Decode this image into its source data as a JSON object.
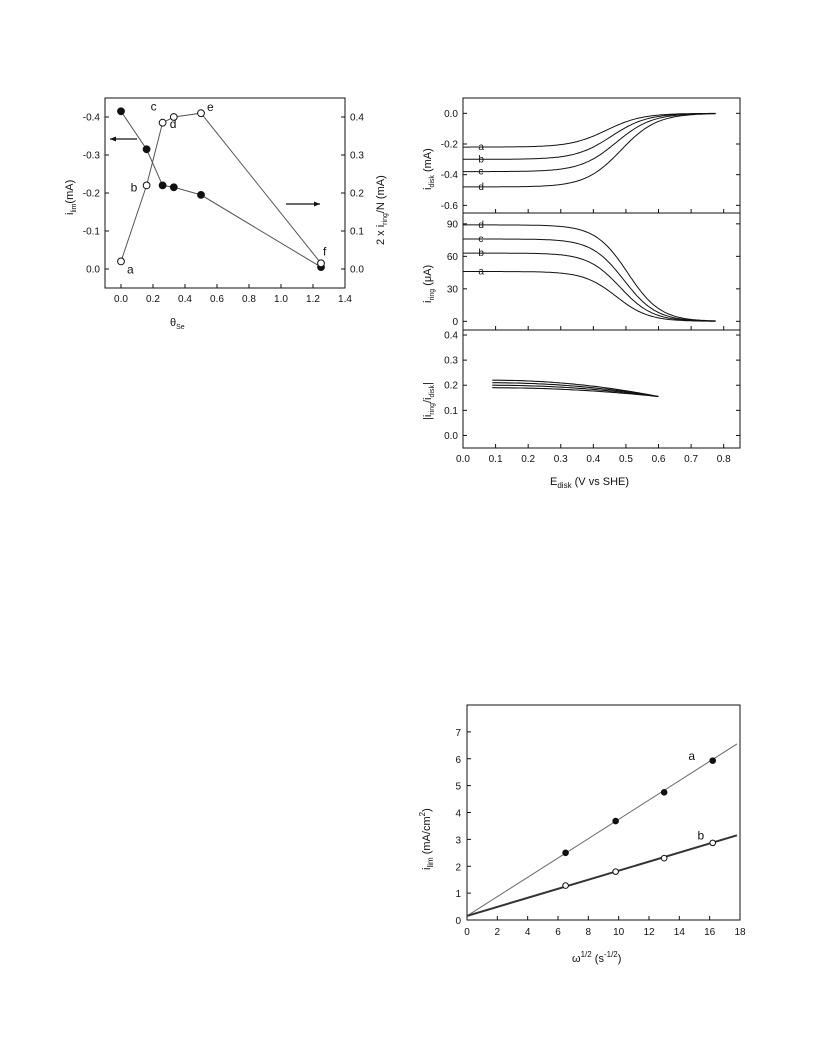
{
  "chart_data": [
    {
      "type": "line",
      "xlabel": "θ",
      "xlabel_sub": "Se",
      "ylabel_left": "i",
      "ylabel_left_sub": "lim",
      "ylabel_left_post": "(mA)",
      "ylabel_right_pre": "2 x i",
      "ylabel_right_sub": "ring",
      "ylabel_right_post": "/N (mA)",
      "xlim": [
        -0.1,
        1.4
      ],
      "xticks": [
        "0.0",
        "0.2",
        "0.4",
        "0.6",
        "0.8",
        "1.0",
        "1.2",
        "1.4"
      ],
      "ylim_left": [
        0.05,
        -0.45
      ],
      "yticks_left": [
        "-0.4",
        "-0.3",
        "-0.2",
        "-0.1",
        "0.0"
      ],
      "ylim_right": [
        -0.05,
        0.45
      ],
      "yticks_right": [
        "0.4",
        "0.3",
        "0.2",
        "0.1",
        "0.0"
      ],
      "series": [
        {
          "marker": "filled",
          "axis": "left",
          "x": [
            0.0,
            0.16,
            0.26,
            0.33,
            0.5,
            1.25
          ],
          "y": [
            -0.415,
            -0.315,
            -0.22,
            -0.215,
            -0.195,
            -0.005
          ]
        },
        {
          "marker": "open",
          "axis": "right",
          "x": [
            0.0,
            0.16,
            0.26,
            0.33,
            0.5,
            1.25
          ],
          "y": [
            0.02,
            0.22,
            0.385,
            0.4,
            0.41,
            0.015
          ],
          "labels": [
            "a",
            "b",
            "c",
            "d",
            "e",
            "f"
          ]
        }
      ]
    },
    {
      "type": "line",
      "xlabel": "E",
      "xlabel_sub": "disk",
      "xlabel_post": " (V vs SHE)",
      "xlim": [
        0.0,
        0.85
      ],
      "xticks": [
        "0.0",
        "0.1",
        "0.2",
        "0.3",
        "0.4",
        "0.5",
        "0.6",
        "0.7",
        "0.8"
      ],
      "panels": [
        {
          "ylabel": "i",
          "ylabel_sub": "disk",
          "ylabel_post": " (mA)",
          "ylim": [
            -0.65,
            0.1
          ],
          "yticks": [
            "0.0",
            "-0.2",
            "-0.4",
            "-0.6"
          ],
          "series": [
            {
              "name": "a",
              "plateau": -0.22
            },
            {
              "name": "b",
              "plateau": -0.3
            },
            {
              "name": "c",
              "plateau": -0.38
            },
            {
              "name": "d",
              "plateau": -0.48
            }
          ]
        },
        {
          "ylabel": "i",
          "ylabel_sub": "ring",
          "ylabel_post": " (μA)",
          "ylim": [
            -8,
            100
          ],
          "yticks": [
            "90",
            "60",
            "30",
            "0"
          ],
          "series": [
            {
              "name": "a",
              "plateau": 46
            },
            {
              "name": "b",
              "plateau": 63
            },
            {
              "name": "c",
              "plateau": 76
            },
            {
              "name": "d",
              "plateau": 89
            }
          ]
        },
        {
          "ylabel": "|i",
          "ylabel_sub": "ring",
          "ylabel_mid": "/i",
          "ylabel_sub2": "disk",
          "ylabel_post": "|",
          "ylim": [
            -0.05,
            0.42
          ],
          "yticks": [
            "0.4",
            "0.3",
            "0.2",
            "0.1",
            "0.0"
          ],
          "series": [
            {
              "name": "a",
              "start": 0.22
            },
            {
              "name": "b",
              "start": 0.21
            },
            {
              "name": "c",
              "start": 0.2
            },
            {
              "name": "d",
              "start": 0.19
            }
          ],
          "x_range": [
            0.09,
            0.6
          ],
          "end_value": 0.155
        }
      ]
    },
    {
      "type": "scatter",
      "xlabel": "ω",
      "xlabel_sup": "1/2",
      "xlabel_post": " (s",
      "xlabel_sup2": "-1/2",
      "xlabel_end": ")",
      "ylabel": "i",
      "ylabel_sub": "lim",
      "ylabel_post": " (mA/cm",
      "ylabel_sup": "2",
      "ylabel_end": ")",
      "xlim": [
        0,
        18
      ],
      "xticks": [
        "0",
        "2",
        "4",
        "6",
        "8",
        "10",
        "12",
        "14",
        "16",
        "18"
      ],
      "ylim": [
        0,
        8
      ],
      "yticks": [
        "0",
        "1",
        "2",
        "3",
        "4",
        "5",
        "6",
        "7"
      ],
      "series": [
        {
          "name": "a",
          "marker": "filled",
          "x": [
            6.5,
            9.8,
            13.0,
            16.2
          ],
          "y": [
            2.5,
            3.68,
            4.75,
            5.93
          ],
          "fit": {
            "x": [
              0,
              17.8
            ],
            "y": [
              0.15,
              6.55
            ]
          }
        },
        {
          "name": "b",
          "marker": "open",
          "x": [
            6.5,
            9.8,
            13.0,
            16.2
          ],
          "y": [
            1.28,
            1.8,
            2.3,
            2.87
          ],
          "fit": {
            "x": [
              0,
              17.8
            ],
            "y": [
              0.15,
              3.15
            ]
          }
        }
      ]
    }
  ]
}
